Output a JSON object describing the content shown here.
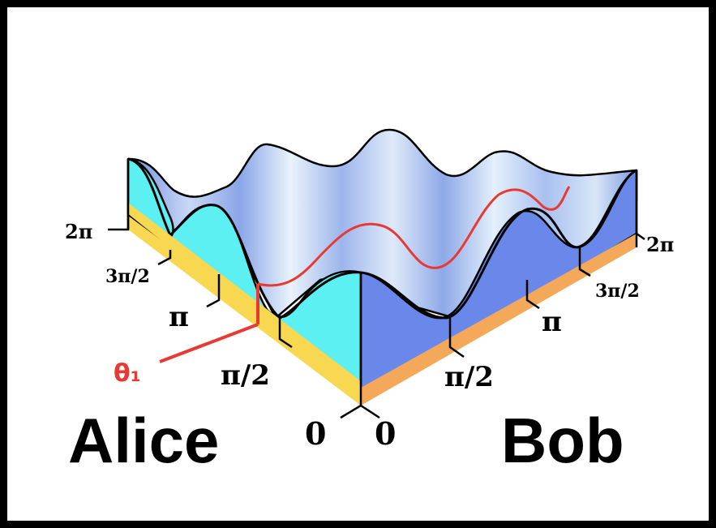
{
  "labels": {
    "alice": "Alice",
    "bob": "Bob",
    "theta": "θ₁"
  },
  "alice_axis": {
    "ticks": [
      "0",
      "π/2",
      "π",
      "3π/2",
      "2π"
    ]
  },
  "bob_axis": {
    "ticks": [
      "0",
      "π/2",
      "π",
      "3π/2",
      "2π"
    ]
  },
  "colors": {
    "surface_light": "#e6f1fb",
    "surface_mid": "#aec4ef",
    "surface_dark": "#7d9de3",
    "left_wall": "#5cf0f3",
    "right_wall": "#6a88ea",
    "left_base": "#f7d850",
    "right_base": "#f4a85a",
    "theta_line": "#e83a35",
    "outline": "#000000"
  }
}
